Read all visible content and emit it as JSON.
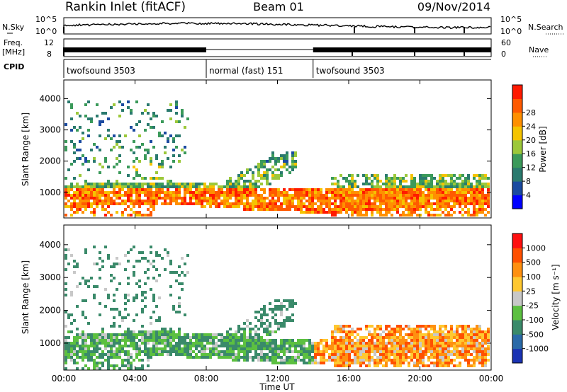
{
  "header": {
    "station": "Rankin Inlet (fitACF)",
    "beam": "Beam 01",
    "date": "09/Nov/2014"
  },
  "status_panels": {
    "nsky_label": "N.Sky",
    "nsky_ticks": [
      "10^5",
      "10^0"
    ],
    "nsearch_label": "N.Search",
    "nsearch_ticks": [
      "10^5",
      "10^0"
    ],
    "freq_label_1": "Freq.",
    "freq_label_2": "[MHz]",
    "freq_ticks": [
      "12",
      "8"
    ],
    "nave_label": "Nave",
    "nave_ticks": [
      "60",
      "0"
    ],
    "cpid_label": "CPID",
    "cpid_segments": [
      {
        "label": "twofsound 3503",
        "start_hour": 0,
        "end_hour": 8
      },
      {
        "label": "normal (fast) 151",
        "start_hour": 8,
        "end_hour": 14
      },
      {
        "label": "twofsound 3503",
        "start_hour": 14,
        "end_hour": 24
      }
    ]
  },
  "chart_data": [
    {
      "type": "heatmap",
      "name": "power",
      "ylabel": "Slant Range [km]",
      "yticks": [
        1000,
        2000,
        3000,
        4000
      ],
      "ylim": [
        180,
        4600
      ],
      "colorbar_label": "Power [dB]",
      "colorbar_ticks": [
        "4",
        "8",
        "12",
        "16",
        "20",
        "24",
        "28"
      ],
      "colors": [
        "#0000ff",
        "#1a4aa0",
        "#2a7a6e",
        "#3b9a5a",
        "#9cc83a",
        "#f5c400",
        "#ff9000",
        "#ff5a00",
        "#ff1a00"
      ]
    },
    {
      "type": "heatmap",
      "name": "velocity",
      "ylabel": "Slant Range [km]",
      "yticks": [
        1000,
        2000,
        3000,
        4000
      ],
      "ylim": [
        180,
        4600
      ],
      "colorbar_label": "Velocity [m s⁻¹]",
      "colorbar_ticks": [
        "1000",
        "500",
        "100",
        "25",
        "-25",
        "-100",
        "-500",
        "-1000"
      ],
      "colors": [
        "#1a33b3",
        "#2a6aa8",
        "#3a8a6a",
        "#5cc040",
        "#c8c8c8",
        "#ffc830",
        "#ff9010",
        "#ff5000",
        "#ff1010"
      ]
    }
  ],
  "xaxis": {
    "label": "Time UT",
    "ticks": [
      "00:00",
      "04:00",
      "08:00",
      "12:00",
      "16:00",
      "20:00",
      "00:00"
    ],
    "tick_hours": [
      0,
      4,
      8,
      12,
      16,
      20,
      24
    ]
  }
}
